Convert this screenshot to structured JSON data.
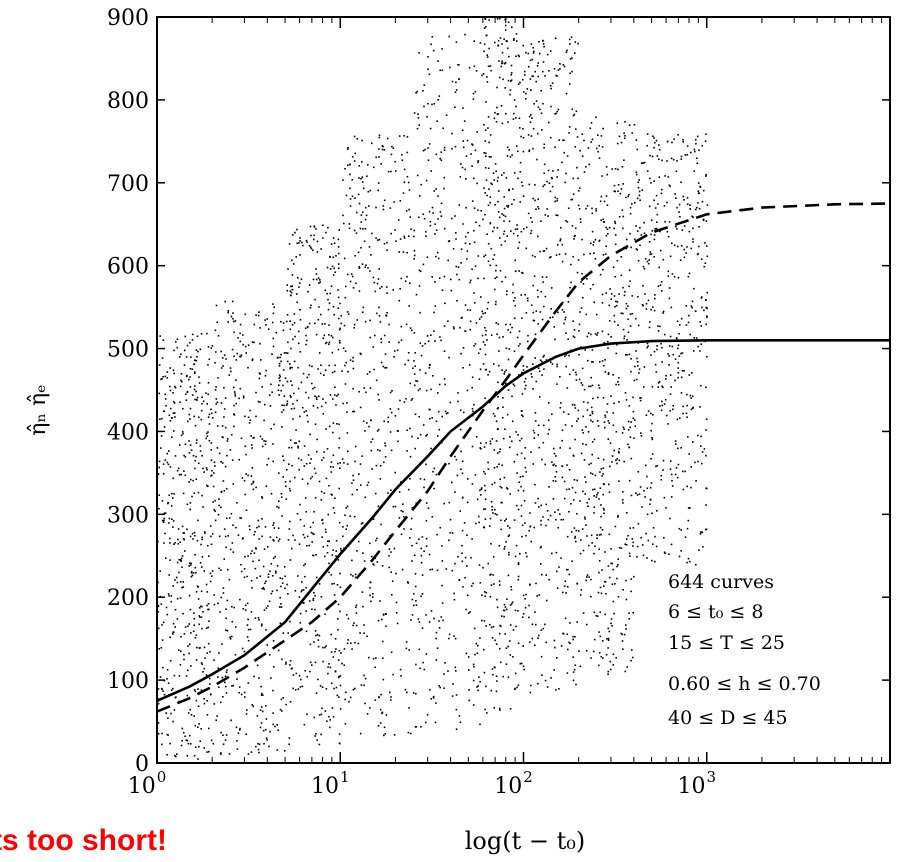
{
  "chart_data": {
    "type": "scatter",
    "title": "",
    "xlabel": "log(t − t₀)",
    "ylabel": "η̂ₙ  η̂ₑ",
    "xscale": "log",
    "xlim": [
      1,
      10000
    ],
    "ylim": [
      0,
      900
    ],
    "yticks": [
      0,
      100,
      200,
      300,
      400,
      500,
      600,
      700,
      800,
      900
    ],
    "xticks": [
      {
        "value": 1,
        "base": "10",
        "exp": "0"
      },
      {
        "value": 10,
        "base": "10",
        "exp": "1"
      },
      {
        "value": 100,
        "base": "10",
        "exp": "2"
      },
      {
        "value": 1000,
        "base": "10",
        "exp": "3"
      }
    ],
    "grid": false,
    "annotation_lines": [
      "644 curves",
      "6 ≤ t₀ ≤ 8",
      "15 ≤ T ≤ 25",
      "0.60 ≤ h ≤ 0.70",
      "40 ≤ D ≤ 45"
    ],
    "series": [
      {
        "style": "solid",
        "color": "#000000",
        "x": [
          1,
          1.5,
          2,
          3,
          5,
          7,
          10,
          15,
          20,
          30,
          40,
          60,
          80,
          100,
          150,
          200,
          300,
          500,
          1000,
          3000,
          10000
        ],
        "y": [
          75,
          92,
          107,
          130,
          170,
          210,
          252,
          296,
          330,
          370,
          400,
          430,
          455,
          470,
          490,
          500,
          506,
          509,
          510,
          510,
          510
        ]
      },
      {
        "style": "dashed",
        "color": "#000000",
        "x": [
          1,
          1.5,
          2,
          3,
          5,
          7,
          10,
          15,
          20,
          30,
          40,
          60,
          80,
          100,
          150,
          200,
          300,
          500,
          1000,
          2000,
          5000,
          10000
        ],
        "y": [
          62,
          78,
          92,
          115,
          148,
          170,
          200,
          245,
          280,
          328,
          370,
          425,
          462,
          492,
          545,
          580,
          612,
          640,
          662,
          670,
          674,
          675
        ]
      },
      {
        "style": "points",
        "color": "#000000",
        "note_bands": [
          {
            "x": [
              1,
              2
            ],
            "y": [
              5,
              520
            ]
          },
          {
            "x": [
              2,
              5
            ],
            "y": [
              10,
              560
            ]
          },
          {
            "x": [
              5,
              10
            ],
            "y": [
              20,
              650
            ]
          },
          {
            "x": [
              10,
              25
            ],
            "y": [
              30,
              760
            ]
          },
          {
            "x": [
              25,
              60
            ],
            "y": [
              40,
              880
            ]
          },
          {
            "x": [
              60,
              100
            ],
            "y": [
              60,
              900
            ]
          },
          {
            "x": [
              100,
              200
            ],
            "y": [
              80,
              880
            ]
          },
          {
            "x": [
              200,
              400
            ],
            "y": [
              100,
              780
            ]
          },
          {
            "x": [
              400,
              1000
            ],
            "y": [
              240,
              760
            ]
          }
        ],
        "count": 4200
      }
    ]
  },
  "overlay_text": "ts too short!",
  "colors": {
    "overlay": "#ff0000",
    "ink": "#000000"
  }
}
